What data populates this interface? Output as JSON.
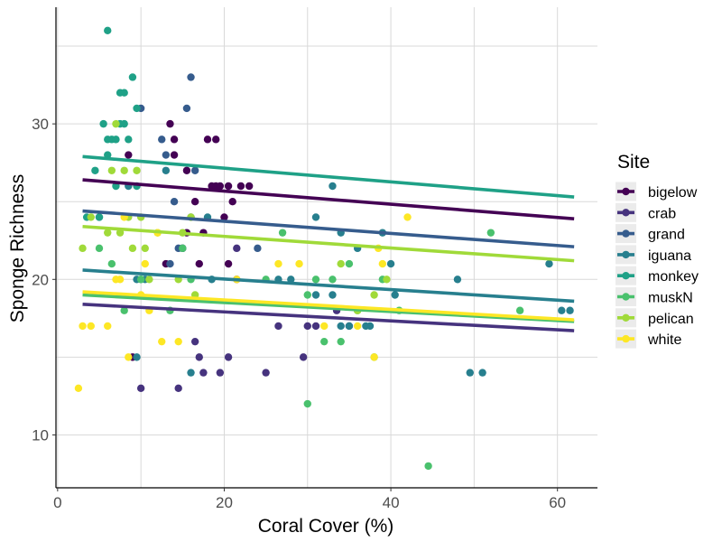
{
  "chart_data": {
    "type": "scatter",
    "xlabel": "Coral Cover (%)",
    "ylabel": "Sponge Richness",
    "xlim": [
      -0.2,
      64.8
    ],
    "ylim": [
      6.6,
      37.5
    ],
    "xticks": [
      0,
      20,
      40,
      60
    ],
    "yticks": [
      10,
      20,
      30
    ],
    "grid": true,
    "legend": {
      "title": "Site",
      "position": "right"
    },
    "series": [
      {
        "name": "bigelow",
        "color": "#440154",
        "trend": {
          "x": [
            3,
            62
          ],
          "y": [
            26.4,
            23.9
          ]
        },
        "points": [
          [
            8.5,
            28
          ],
          [
            9,
            15
          ],
          [
            13,
            21
          ],
          [
            13.5,
            30
          ],
          [
            14,
            29
          ],
          [
            14,
            28
          ],
          [
            15.5,
            27
          ],
          [
            15.5,
            23
          ],
          [
            16.5,
            25
          ],
          [
            17,
            21
          ],
          [
            17.5,
            23
          ],
          [
            18,
            29
          ],
          [
            18.5,
            26
          ],
          [
            19,
            26
          ],
          [
            19,
            29
          ],
          [
            19.5,
            26
          ],
          [
            20,
            24
          ],
          [
            20.5,
            26
          ],
          [
            20.5,
            21
          ],
          [
            21,
            25
          ],
          [
            21.5,
            20
          ],
          [
            22,
            26
          ],
          [
            23,
            26
          ]
        ]
      },
      {
        "name": "crab",
        "color": "#46337E",
        "trend": {
          "x": [
            3,
            62
          ],
          "y": [
            18.4,
            16.7
          ]
        },
        "points": [
          [
            10,
            13
          ],
          [
            14.5,
            13
          ],
          [
            15,
            22
          ],
          [
            16.5,
            16
          ],
          [
            17,
            15
          ],
          [
            17.5,
            14
          ],
          [
            19.5,
            14
          ],
          [
            20.5,
            15
          ],
          [
            21.5,
            22
          ],
          [
            25,
            14
          ],
          [
            26.5,
            17
          ],
          [
            29.5,
            15
          ],
          [
            30,
            17
          ],
          [
            31,
            17
          ],
          [
            33.5,
            18
          ],
          [
            35,
            17
          ]
        ]
      },
      {
        "name": "grand",
        "color": "#365C8D",
        "trend": {
          "x": [
            3,
            62
          ],
          "y": [
            24.4,
            22.1
          ]
        },
        "points": [
          [
            10,
            31
          ],
          [
            12.5,
            29
          ],
          [
            13,
            28
          ],
          [
            13.5,
            21
          ],
          [
            14,
            25
          ],
          [
            14.5,
            22
          ],
          [
            15,
            22
          ],
          [
            15.5,
            31
          ],
          [
            16,
            33
          ],
          [
            16,
            24
          ],
          [
            16.5,
            27
          ],
          [
            24,
            22
          ]
        ]
      },
      {
        "name": "iguana",
        "color": "#277F8E",
        "trend": {
          "x": [
            3,
            62
          ],
          "y": [
            20.6,
            18.6
          ]
        },
        "points": [
          [
            5,
            24
          ],
          [
            8.5,
            26
          ],
          [
            9.5,
            15
          ],
          [
            9.5,
            20
          ],
          [
            10.5,
            20
          ],
          [
            13,
            27
          ],
          [
            16,
            14
          ],
          [
            18,
            24
          ],
          [
            18.5,
            20
          ],
          [
            26.5,
            20
          ],
          [
            28,
            20
          ],
          [
            31,
            24
          ],
          [
            31,
            19
          ],
          [
            33,
            26
          ],
          [
            33,
            19
          ],
          [
            34,
            23
          ],
          [
            34,
            17
          ],
          [
            35,
            17
          ],
          [
            36,
            22
          ],
          [
            37,
            17
          ],
          [
            37.5,
            17
          ],
          [
            39,
            23
          ],
          [
            40,
            21
          ],
          [
            40.5,
            19
          ],
          [
            48,
            20
          ],
          [
            49.5,
            14
          ],
          [
            51,
            14
          ],
          [
            59,
            21
          ],
          [
            60.5,
            18
          ],
          [
            61.5,
            18
          ]
        ]
      },
      {
        "name": "monkey",
        "color": "#1FA187",
        "trend": {
          "x": [
            3,
            62
          ],
          "y": [
            27.9,
            25.3
          ]
        },
        "points": [
          [
            3.5,
            24
          ],
          [
            4.5,
            27
          ],
          [
            5,
            24
          ],
          [
            5.5,
            30
          ],
          [
            6,
            28
          ],
          [
            6,
            29
          ],
          [
            6.5,
            29
          ],
          [
            7,
            29
          ],
          [
            7,
            26
          ],
          [
            7.5,
            30
          ],
          [
            7.5,
            32
          ],
          [
            8,
            32
          ],
          [
            8,
            30
          ],
          [
            8.5,
            29
          ],
          [
            9,
            33
          ],
          [
            9.5,
            26
          ],
          [
            9.5,
            31
          ],
          [
            10,
            20
          ],
          [
            6,
            36
          ]
        ]
      },
      {
        "name": "muskN",
        "color": "#4AC16D",
        "trend": {
          "x": [
            3,
            62
          ],
          "y": [
            19.0,
            17.3
          ]
        },
        "points": [
          [
            5,
            22
          ],
          [
            6.5,
            21
          ],
          [
            8,
            18
          ],
          [
            10,
            20
          ],
          [
            13.5,
            18
          ],
          [
            15,
            22
          ],
          [
            16,
            20
          ],
          [
            25,
            20
          ],
          [
            27,
            23
          ],
          [
            30,
            12
          ],
          [
            30,
            19
          ],
          [
            31,
            20
          ],
          [
            32,
            16
          ],
          [
            33,
            20
          ],
          [
            34,
            16
          ],
          [
            35,
            21
          ],
          [
            36,
            18
          ],
          [
            38,
            15
          ],
          [
            39,
            20
          ],
          [
            41,
            18
          ],
          [
            44.5,
            8
          ],
          [
            52,
            23
          ],
          [
            55.5,
            18
          ]
        ]
      },
      {
        "name": "pelican",
        "color": "#A0DA39",
        "trend": {
          "x": [
            3,
            62
          ],
          "y": [
            23.4,
            21.2
          ]
        },
        "points": [
          [
            3,
            22
          ],
          [
            4,
            24
          ],
          [
            6,
            23
          ],
          [
            6.5,
            27
          ],
          [
            7,
            30
          ],
          [
            7.5,
            23
          ],
          [
            8,
            27
          ],
          [
            8.5,
            24
          ],
          [
            9,
            22
          ],
          [
            9.5,
            27
          ],
          [
            10,
            24
          ],
          [
            10.5,
            22
          ],
          [
            11,
            20
          ],
          [
            12,
            23
          ],
          [
            14.5,
            20
          ],
          [
            15,
            23
          ],
          [
            16,
            24
          ],
          [
            16.5,
            19
          ],
          [
            34,
            21
          ],
          [
            36,
            18
          ],
          [
            38,
            19
          ],
          [
            39.5,
            20
          ]
        ]
      },
      {
        "name": "white",
        "color": "#FDE725",
        "trend": {
          "x": [
            3,
            62
          ],
          "y": [
            19.2,
            17.4
          ]
        },
        "points": [
          [
            2.5,
            13
          ],
          [
            3,
            17
          ],
          [
            4,
            17
          ],
          [
            6,
            17
          ],
          [
            7,
            20
          ],
          [
            7.5,
            20
          ],
          [
            8,
            24
          ],
          [
            8.5,
            15
          ],
          [
            10,
            19
          ],
          [
            10.5,
            21
          ],
          [
            11,
            18
          ],
          [
            12,
            23
          ],
          [
            12.5,
            16
          ],
          [
            14.5,
            16
          ],
          [
            21.5,
            20
          ],
          [
            26.5,
            21
          ],
          [
            29,
            21
          ],
          [
            32,
            17
          ],
          [
            36,
            17
          ],
          [
            38,
            15
          ],
          [
            38.5,
            22
          ],
          [
            39,
            21
          ],
          [
            42,
            24
          ]
        ]
      }
    ]
  }
}
